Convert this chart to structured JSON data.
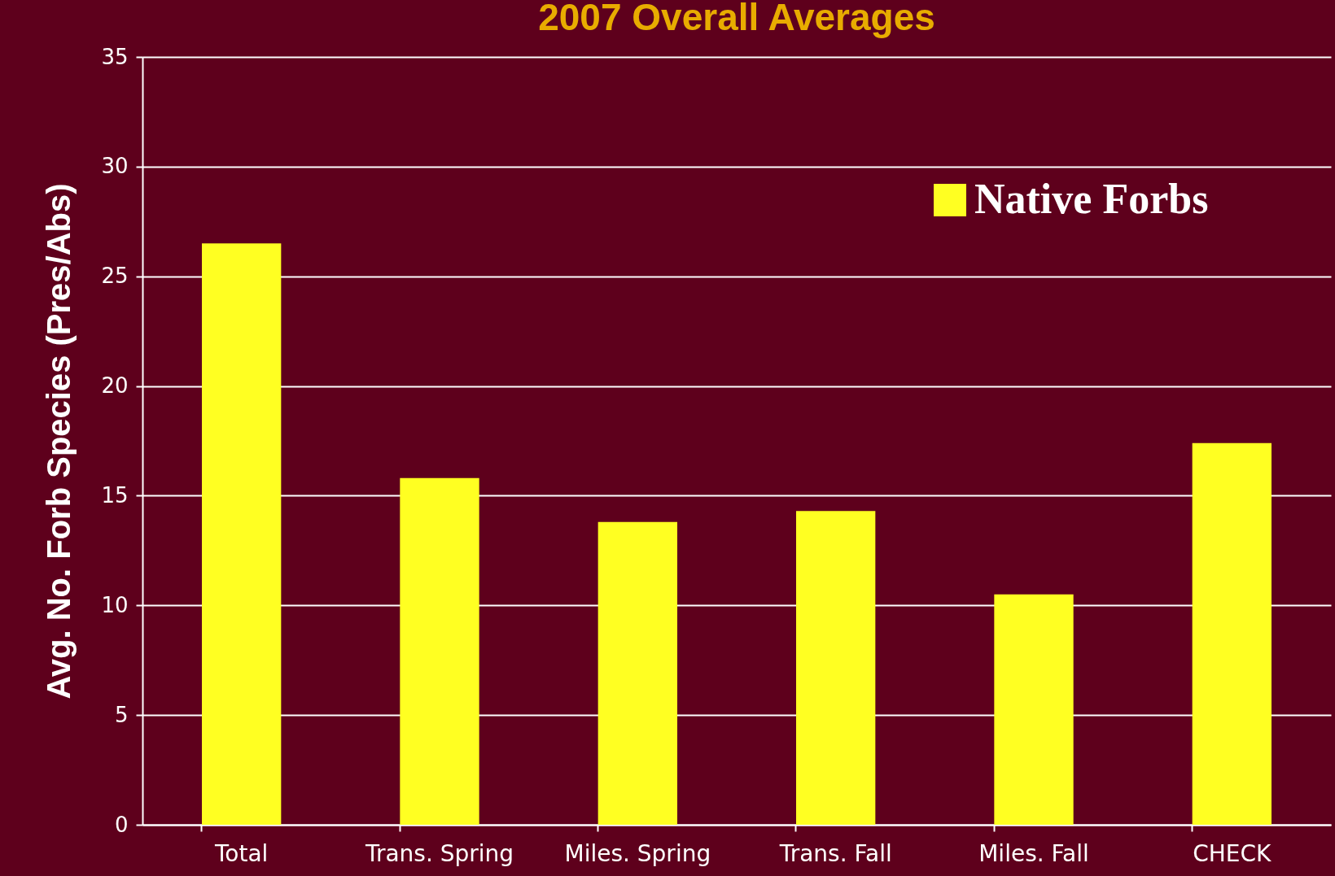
{
  "chart_data": {
    "type": "bar",
    "title": "2007 Overall Averages",
    "ylabel": "Avg. No. Forb Species (Pres/Abs)",
    "categories": [
      "Total",
      "Trans. Spring",
      "Miles. Spring",
      "Trans. Fall",
      "Miles. Fall",
      "CHECK"
    ],
    "series": [
      {
        "name": "Native Forbs",
        "color": "#ffff22",
        "values": [
          26.5,
          15.8,
          13.8,
          14.3,
          10.5,
          17.4
        ]
      }
    ],
    "ylim": [
      0,
      35
    ],
    "yticks": [
      0,
      5,
      10,
      15,
      20,
      25,
      30,
      35
    ],
    "grid": "y",
    "legend": "top right"
  }
}
